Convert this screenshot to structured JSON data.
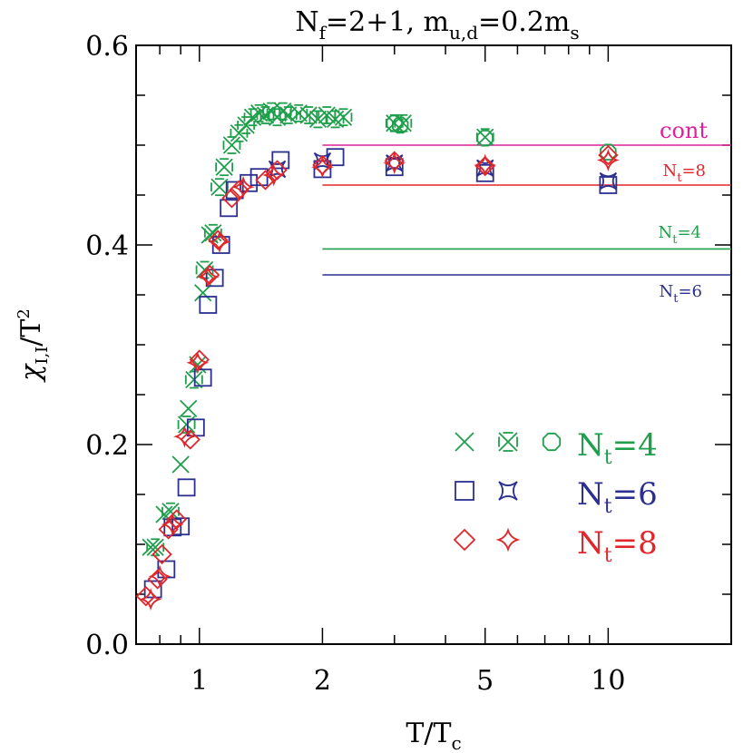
{
  "chart_data": {
    "type": "scatter",
    "title": "N_f=2+1,  m_u,d=0.2m_s",
    "title_parts": {
      "n": "N",
      "f": "f",
      "eq1": "=2+1,  m",
      "ud": "u,d",
      "eq2": "=0.2m",
      "s": "s"
    },
    "xlabel": "T/T_c",
    "xlabel_parts": {
      "a": "T/T",
      "b": "c"
    },
    "ylabel": "χ_I,I/T^2",
    "ylabel_parts": {
      "chi": "χ",
      "sub": "I,I",
      "mid": "/T",
      "sup": "2"
    },
    "x_scale": "log",
    "xlim": [
      0.7,
      20
    ],
    "ylim": [
      0.0,
      0.6
    ],
    "x_ticks": [
      {
        "value": 1,
        "label": "1"
      },
      {
        "value": 2,
        "label": "2"
      },
      {
        "value": 5,
        "label": "5"
      },
      {
        "value": 10,
        "label": "10"
      }
    ],
    "y_ticks": [
      {
        "value": 0.0,
        "label": "0.0"
      },
      {
        "value": 0.2,
        "label": "0.2"
      },
      {
        "value": 0.4,
        "label": "0.4"
      },
      {
        "value": 0.6,
        "label": "0.6"
      }
    ],
    "colors": {
      "nt4": "#1f9e4b",
      "nt6": "#2b2f8f",
      "nt8": "#e1262b",
      "cont": "#e0209a"
    },
    "reference_lines": [
      {
        "label": "cont",
        "y": 0.5,
        "x_from": 2,
        "color": "#e0209a"
      },
      {
        "label": "N_t=8",
        "y": 0.46,
        "x_from": 2,
        "color": "#e1262b"
      },
      {
        "label": "N_t=4",
        "y": 0.396,
        "x_from": 2,
        "color": "#1f9e4b"
      },
      {
        "label": "N_t=6",
        "y": 0.37,
        "x_from": 2,
        "color": "#2b2f8f"
      }
    ],
    "line_labels": {
      "cont": {
        "a": "cont",
        "b": ""
      },
      "nt8": {
        "a": "N",
        "b": "t",
        "c": "=8"
      },
      "nt4": {
        "a": "N",
        "b": "t",
        "c": "=4"
      },
      "nt6": {
        "a": "N",
        "b": "t",
        "c": "=6"
      }
    },
    "legend": {
      "placement": "lower-right",
      "entries": [
        {
          "label_main": "N",
          "label_sub": "t",
          "label_rest": "=4",
          "markers": [
            "x",
            "xx",
            "octagon"
          ],
          "color": "#1f9e4b"
        },
        {
          "label_main": "N",
          "label_sub": "t",
          "label_rest": "=6",
          "markers": [
            "square",
            "square-star"
          ],
          "color": "#2b2f8f"
        },
        {
          "label_main": "N",
          "label_sub": "t",
          "label_rest": "=8",
          "markers": [
            "diamond",
            "diamond-star"
          ],
          "color": "#e1262b"
        }
      ]
    },
    "series": [
      {
        "name": "N_t=4",
        "marker": "x",
        "color": "#1f9e4b",
        "points": [
          [
            0.76,
            0.097
          ],
          [
            0.82,
            0.13
          ],
          [
            0.9,
            0.18
          ],
          [
            0.94,
            0.236
          ],
          [
            0.99,
            0.28
          ],
          [
            1.02,
            0.352
          ],
          [
            1.06,
            0.41
          ]
        ]
      },
      {
        "name": "N_t=4",
        "marker": "xx",
        "color": "#1f9e4b",
        "points": [
          [
            0.78,
            0.097
          ],
          [
            0.85,
            0.133
          ],
          [
            0.93,
            0.22
          ],
          [
            0.97,
            0.265
          ],
          [
            1.03,
            0.375
          ],
          [
            1.08,
            0.412
          ],
          [
            1.12,
            0.458
          ],
          [
            1.15,
            0.478
          ],
          [
            1.2,
            0.5
          ],
          [
            1.25,
            0.512
          ],
          [
            1.3,
            0.52
          ],
          [
            1.35,
            0.528
          ],
          [
            1.4,
            0.532
          ],
          [
            1.45,
            0.53
          ],
          [
            1.5,
            0.534
          ],
          [
            1.55,
            0.528
          ],
          [
            1.6,
            0.534
          ],
          [
            1.65,
            0.53
          ],
          [
            1.75,
            0.532
          ],
          [
            1.85,
            0.53
          ],
          [
            1.95,
            0.526
          ],
          [
            2.05,
            0.53
          ],
          [
            2.15,
            0.526
          ],
          [
            2.25,
            0.528
          ],
          [
            3.0,
            0.522
          ],
          [
            3.15,
            0.522
          ],
          [
            5.0,
            0.508
          ]
        ]
      },
      {
        "name": "N_t=4",
        "marker": "octagon",
        "color": "#1f9e4b",
        "points": [
          [
            3.0,
            0.522
          ],
          [
            3.1,
            0.52
          ],
          [
            5.0,
            0.507
          ],
          [
            10.0,
            0.493
          ]
        ]
      },
      {
        "name": "N_t=6",
        "marker": "square",
        "color": "#2b2f8f",
        "points": [
          [
            0.77,
            0.055
          ],
          [
            0.83,
            0.075
          ],
          [
            0.86,
            0.117
          ],
          [
            0.9,
            0.118
          ],
          [
            0.93,
            0.157
          ],
          [
            0.98,
            0.217
          ],
          [
            1.02,
            0.267
          ],
          [
            1.05,
            0.34
          ],
          [
            1.09,
            0.367
          ],
          [
            1.13,
            0.4
          ],
          [
            1.18,
            0.437
          ],
          [
            1.22,
            0.455
          ],
          [
            1.32,
            0.462
          ],
          [
            1.4,
            0.468
          ],
          [
            1.58,
            0.485
          ],
          [
            2.0,
            0.476
          ],
          [
            2.15,
            0.488
          ],
          [
            3.0,
            0.478
          ],
          [
            5.0,
            0.472
          ],
          [
            10.0,
            0.46
          ]
        ]
      },
      {
        "name": "N_t=6",
        "marker": "square-star",
        "color": "#2b2f8f",
        "points": [
          [
            1.55,
            0.476
          ],
          [
            2.0,
            0.484
          ],
          [
            3.0,
            0.482
          ],
          [
            5.0,
            0.477
          ],
          [
            10.0,
            0.464
          ]
        ]
      },
      {
        "name": "N_t=8",
        "marker": "diamond",
        "color": "#e1262b",
        "points": [
          [
            0.74,
            0.048
          ],
          [
            0.79,
            0.065
          ],
          [
            0.81,
            0.09
          ],
          [
            0.84,
            0.115
          ],
          [
            0.88,
            0.125
          ],
          [
            0.95,
            0.205
          ],
          [
            1.0,
            0.285
          ],
          [
            1.06,
            0.37
          ],
          [
            1.11,
            0.405
          ],
          [
            1.2,
            0.447
          ],
          [
            1.25,
            0.455
          ],
          [
            1.45,
            0.465
          ],
          [
            1.55,
            0.475
          ],
          [
            2.0,
            0.48
          ],
          [
            3.0,
            0.484
          ],
          [
            5.0,
            0.479
          ],
          [
            10.0,
            0.49
          ]
        ]
      },
      {
        "name": "N_t=8",
        "marker": "diamond-star",
        "color": "#e1262b",
        "points": [
          [
            0.76,
            0.045
          ],
          [
            0.8,
            0.068
          ],
          [
            0.86,
            0.12
          ],
          [
            0.92,
            0.208
          ],
          [
            0.99,
            0.282
          ],
          [
            1.05,
            0.368
          ],
          [
            1.12,
            0.403
          ],
          [
            1.28,
            0.458
          ],
          [
            1.52,
            0.47
          ],
          [
            2.0,
            0.478
          ],
          [
            3.0,
            0.482
          ],
          [
            5.0,
            0.48
          ],
          [
            10.0,
            0.485
          ]
        ]
      }
    ]
  }
}
